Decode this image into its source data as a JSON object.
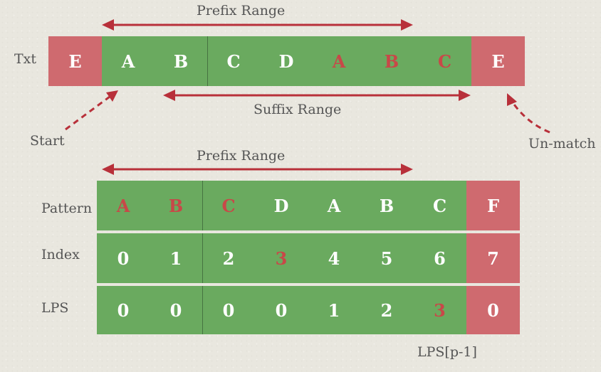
{
  "labels": {
    "txt": "Txt",
    "pattern": "Pattern",
    "index": "Index",
    "lps": "LPS",
    "prefix_range_top": "Prefix Range",
    "suffix_range": "Suffix Range",
    "start": "Start",
    "unmatch": "Un-match",
    "prefix_range_bottom": "Prefix Range",
    "lps_p1": "LPS[p-1]"
  },
  "txt_cells": [
    "E",
    "A",
    "B",
    "C",
    "D",
    "A",
    "B",
    "C",
    "E"
  ],
  "pattern_cells": [
    "A",
    "B",
    "C",
    "D",
    "A",
    "B",
    "C",
    "F"
  ],
  "index_cells": [
    "0",
    "1",
    "2",
    "3",
    "4",
    "5",
    "6",
    "7"
  ],
  "lps_cells": [
    "0",
    "0",
    "0",
    "0",
    "1",
    "2",
    "3",
    "0"
  ],
  "colors": {
    "match": "#6aaa5f",
    "mismatch": "#cf6a6f",
    "highlight": "#c84848",
    "arrow": "#b8303a"
  }
}
